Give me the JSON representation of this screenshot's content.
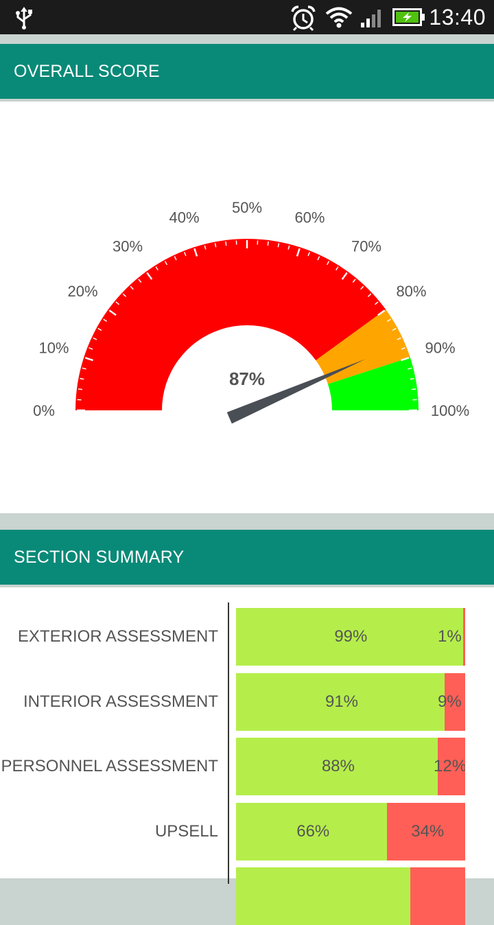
{
  "status_bar": {
    "time": "13:40",
    "icons": [
      "usb-icon",
      "alarm-icon",
      "wifi-icon",
      "signal-icon",
      "battery-charging-icon"
    ]
  },
  "overall_section": {
    "title": "OVERALL SCORE"
  },
  "summary_section": {
    "title": "SECTION SUMMARY"
  },
  "colors": {
    "header_bg": "#098a78",
    "gauge_red": "#ff0000",
    "gauge_orange": "#ffa500",
    "gauge_green": "#00ff00",
    "bar_positive": "#b5ee4b",
    "bar_negative": "#ff5f56",
    "needle": "#4a4e55"
  },
  "gauge": {
    "value_label": "87%",
    "value": 87,
    "min": 0,
    "max": 100,
    "tick_labels": [
      "0%",
      "10%",
      "20%",
      "30%",
      "40%",
      "50%",
      "60%",
      "70%",
      "80%",
      "90%",
      "100%"
    ],
    "bands": [
      {
        "from": 0,
        "to": 80,
        "color": "#ff0000"
      },
      {
        "from": 80,
        "to": 90,
        "color": "#ffa500"
      },
      {
        "from": 90,
        "to": 100,
        "color": "#00ff00"
      }
    ]
  },
  "chart_data": {
    "type": "bar",
    "stacked": true,
    "orientation": "horizontal",
    "categories": [
      "EXTERIOR ASSESSMENT",
      "INTERIOR ASSESSMENT",
      "PERSONNEL ASSESSMENT",
      "UPSELL",
      ""
    ],
    "series": [
      {
        "values": [
          99,
          91,
          88,
          66,
          76
        ],
        "labels": [
          "99%",
          "91%",
          "88%",
          "66%",
          ""
        ]
      },
      {
        "values": [
          1,
          9,
          12,
          34,
          24
        ],
        "labels": [
          "1%",
          "9%",
          "12%",
          "34%",
          ""
        ]
      }
    ]
  }
}
